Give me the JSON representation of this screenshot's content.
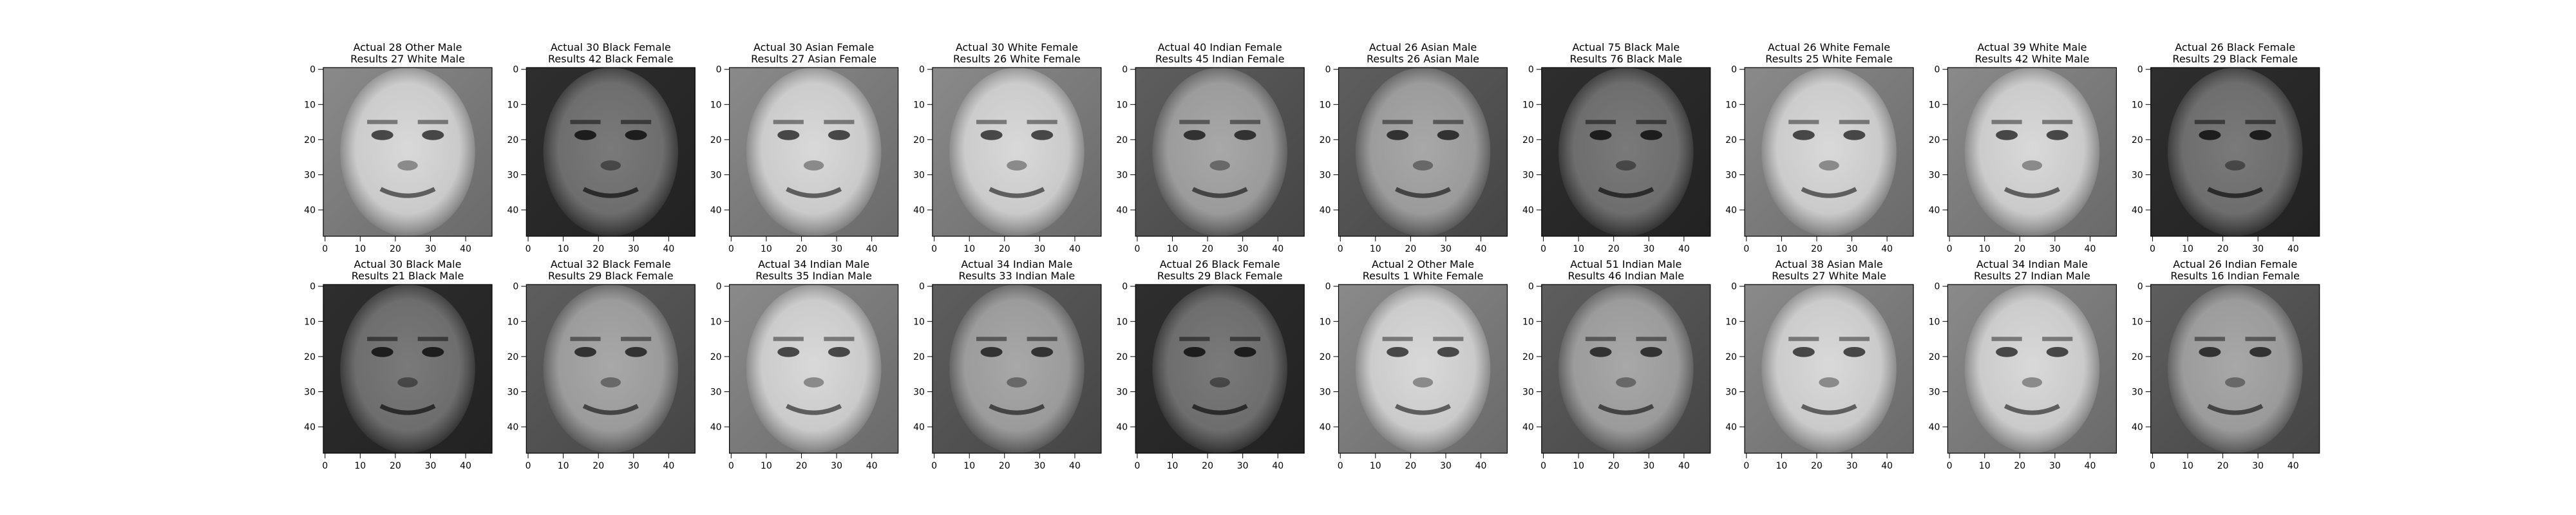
{
  "figure": {
    "rows": [
      [
        {
          "title": "Actual 28 Other Male",
          "subtitle": "Results 27 White Male",
          "tone": "light"
        },
        {
          "title": "Actual 30 Black Female",
          "subtitle": "Results 42 Black Female",
          "tone": "dark"
        },
        {
          "title": "Actual 30 Asian Female",
          "subtitle": "Results 27 Asian Female",
          "tone": "light"
        },
        {
          "title": "Actual 30 White Female",
          "subtitle": "Results 26 White Female",
          "tone": "light"
        },
        {
          "title": "Actual 40 Indian Female",
          "subtitle": "Results 45 Indian Female",
          "tone": "mid"
        },
        {
          "title": "Actual 26 Asian Male",
          "subtitle": "Results 26 Asian Male",
          "tone": "mid"
        },
        {
          "title": "Actual 75 Black Male",
          "subtitle": "Results 76 Black Male",
          "tone": "dark"
        },
        {
          "title": "Actual 26 White Female",
          "subtitle": "Results 25 White Female",
          "tone": "light"
        },
        {
          "title": "Actual 39 White Male",
          "subtitle": "Results 42 White Male",
          "tone": "light"
        },
        {
          "title": "Actual 26 Black Female",
          "subtitle": "Results 29 Black Female",
          "tone": "dark"
        }
      ],
      [
        {
          "title": "Actual 30 Black Male",
          "subtitle": "Results 21 Black Male",
          "tone": "dark"
        },
        {
          "title": "Actual 32 Black Female",
          "subtitle": "Results 29 Black Female",
          "tone": "mid"
        },
        {
          "title": "Actual 34 Indian Male",
          "subtitle": "Results 35 Indian Male",
          "tone": "light"
        },
        {
          "title": "Actual 34 Indian Male",
          "subtitle": "Results 33 Indian Male",
          "tone": "mid"
        },
        {
          "title": "Actual 26 Black Female",
          "subtitle": "Results 29 Black Female",
          "tone": "dark"
        },
        {
          "title": "Actual 2 Other Male",
          "subtitle": "Results 1 White Female",
          "tone": "light"
        },
        {
          "title": "Actual 51 Indian Male",
          "subtitle": "Results 46 Indian Male",
          "tone": "mid"
        },
        {
          "title": "Actual 38 Asian Male",
          "subtitle": "Results 27 White Male",
          "tone": "light"
        },
        {
          "title": "Actual 34 Indian Male",
          "subtitle": "Results 27 Indian Male",
          "tone": "light"
        },
        {
          "title": "Actual 26 Indian Female",
          "subtitle": "Results 16 Indian Female",
          "tone": "mid"
        }
      ]
    ],
    "x_ticks": [
      "0",
      "10",
      "20",
      "30",
      "40"
    ],
    "y_ticks": [
      "0",
      "10",
      "20",
      "30",
      "40"
    ],
    "tick_values": [
      0,
      10,
      20,
      30,
      40
    ],
    "image_extent": 48,
    "colors": {
      "text": "#000000",
      "axes": "#000000",
      "background": "#ffffff"
    }
  }
}
